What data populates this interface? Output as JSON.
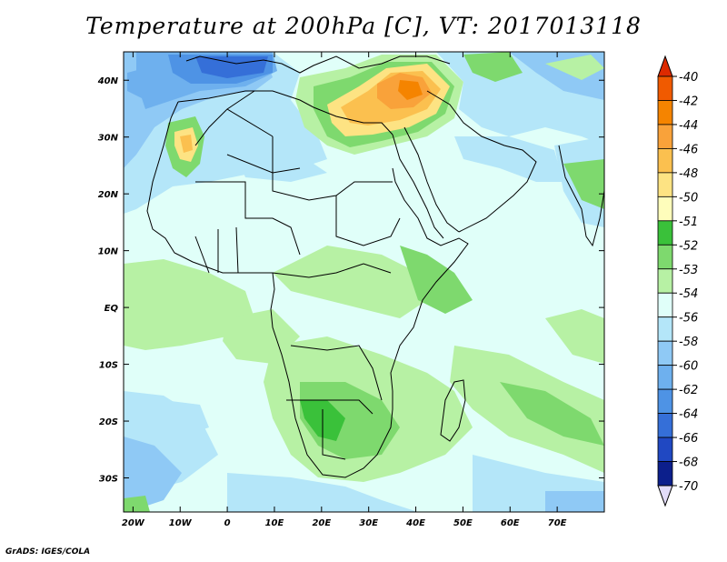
{
  "title": "Temperature at 200hPa [C], VT: 2017013118",
  "credit": "GrADS: IGES/COLA",
  "map": {
    "region": "Africa and Arabian Peninsula",
    "projection": "lat-lon",
    "lon_range": [
      -22,
      80
    ],
    "lat_range": [
      -36,
      45
    ],
    "lon_ticks": [
      "20W",
      "10W",
      "0",
      "10E",
      "20E",
      "30E",
      "40E",
      "50E",
      "60E",
      "70E"
    ],
    "lat_ticks": [
      "40N",
      "30N",
      "20N",
      "10N",
      "EQ",
      "10S",
      "20S",
      "30S"
    ]
  },
  "colorbar": {
    "labels": [
      "-40",
      "-42",
      "-44",
      "-46",
      "-48",
      "-50",
      "-51",
      "-52",
      "-53",
      "-54",
      "-56",
      "-58",
      "-60",
      "-62",
      "-64",
      "-66",
      "-68",
      "-70"
    ],
    "colors": {
      "gt_-40": "#dd2a00",
      "-40_-42": "#f05a00",
      "-42_-44": "#f58400",
      "-44_-46": "#f9a23a",
      "-46_-48": "#fbc04f",
      "-48_-50": "#fde383",
      "-50_-51": "#fefdbb",
      "-51_-52": "#3ac13a",
      "-52_-53": "#7ed96e",
      "-53_-54": "#b7f1a4",
      "-54_-56": "#e0fff9",
      "-56_-58": "#b4e6f9",
      "-58_-60": "#8fc9f5",
      "-60_-62": "#6eb0ee",
      "-62_-64": "#4e93e5",
      "-64_-66": "#356fd8",
      "-66_-68": "#2048c2",
      "-68_-70": "#0c1f8c",
      "lt_-70": "#e2dcf9"
    }
  }
}
